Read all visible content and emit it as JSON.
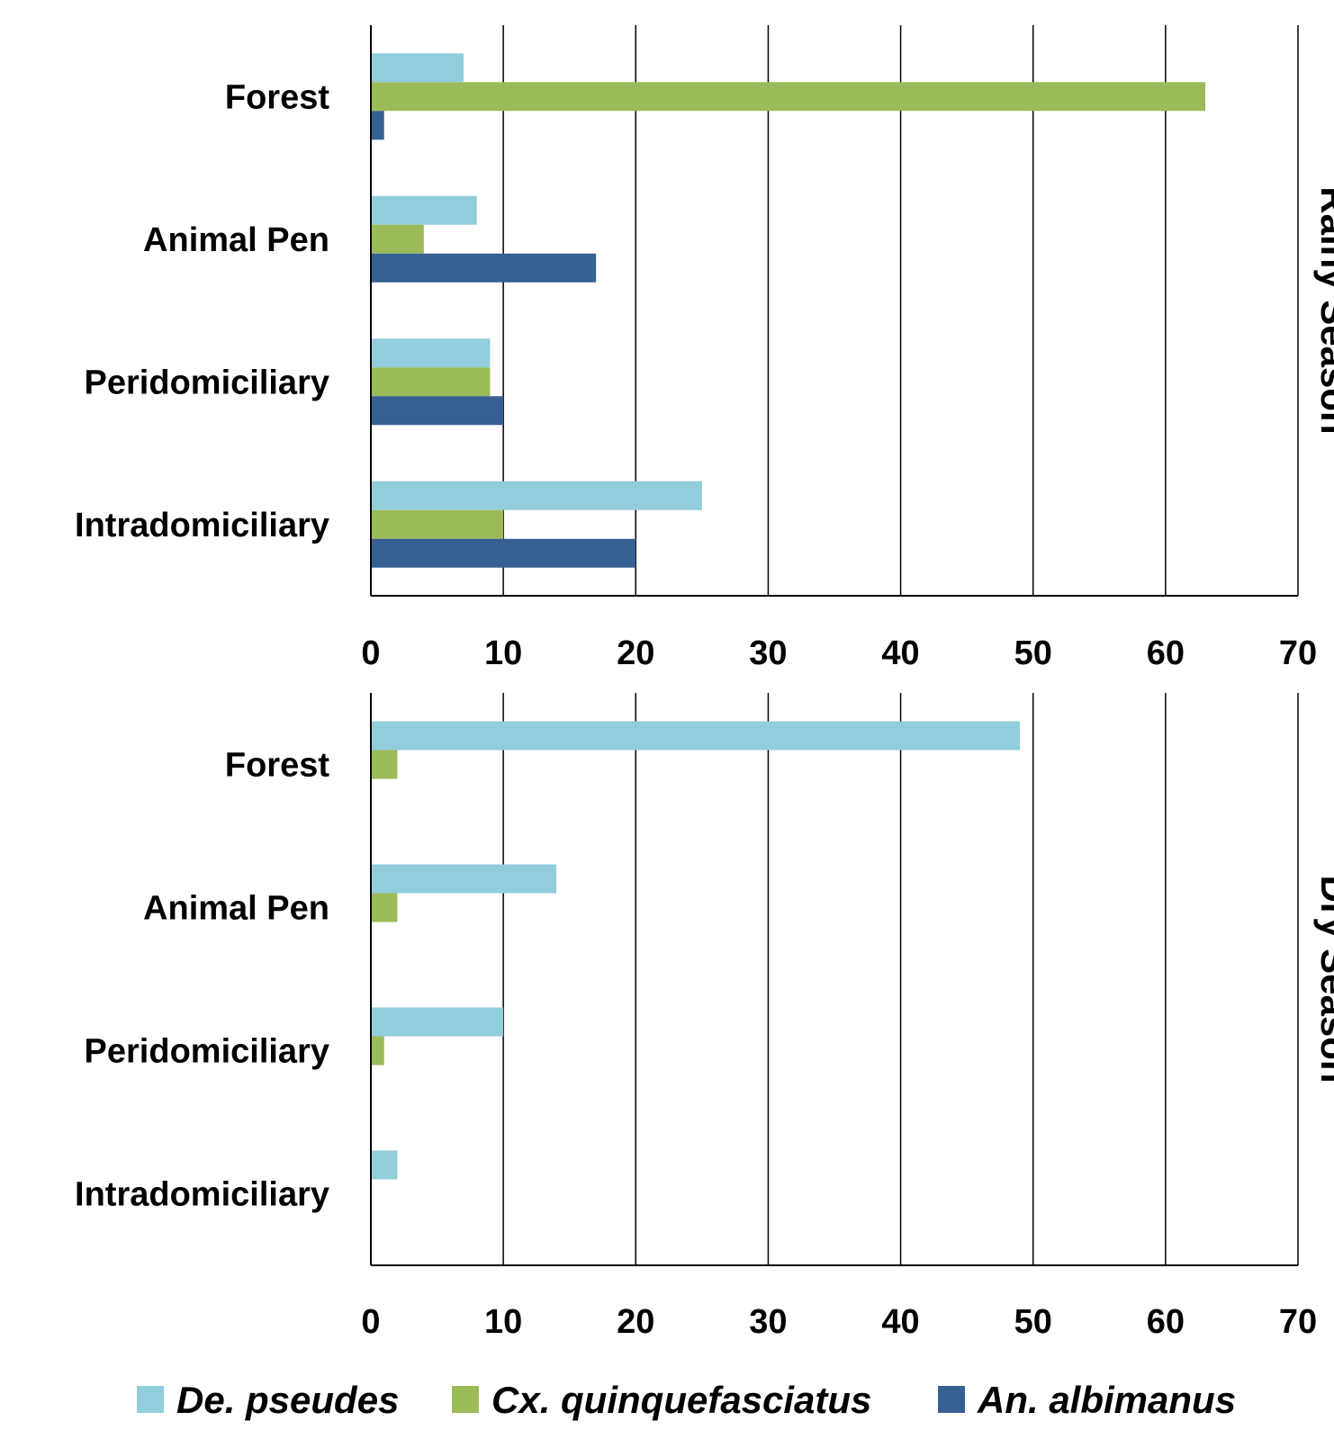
{
  "chart_data": [
    {
      "type": "bar",
      "orientation": "horizontal",
      "panel_label": "Rainy Season",
      "categories": [
        "Forest",
        "Animal Pen",
        "Peridomiciliary",
        "Intradomiciliary"
      ],
      "series": [
        {
          "name": "De. pseudes",
          "values": [
            7,
            8,
            9,
            25
          ]
        },
        {
          "name": "Cx. quinquefasciatus",
          "values": [
            63,
            4,
            9,
            10
          ]
        },
        {
          "name": "An. albimanus",
          "values": [
            1,
            17,
            10,
            20
          ]
        }
      ],
      "xlim": [
        0,
        70
      ],
      "xticks": [
        0,
        10,
        20,
        30,
        40,
        50,
        60,
        70
      ],
      "grid": "vertical",
      "legend": "bottom"
    },
    {
      "type": "bar",
      "orientation": "horizontal",
      "panel_label": "Dry Season",
      "categories": [
        "Forest",
        "Animal Pen",
        "Peridomiciliary",
        "Intradomiciliary"
      ],
      "series": [
        {
          "name": "De. pseudes",
          "values": [
            49,
            14,
            10,
            2
          ]
        },
        {
          "name": "Cx. quinquefasciatus",
          "values": [
            2,
            2,
            1,
            0
          ]
        },
        {
          "name": "An. albimanus",
          "values": [
            0,
            0,
            0,
            0
          ]
        }
      ],
      "xlim": [
        0,
        70
      ],
      "xticks": [
        0,
        10,
        20,
        30,
        40,
        50,
        60,
        70
      ],
      "grid": "vertical",
      "legend": "bottom"
    }
  ],
  "legend": {
    "items": [
      {
        "label": "De. pseudes",
        "color": "#92cddc"
      },
      {
        "label": "Cx. quinquefasciatus",
        "color": "#9bbb59"
      },
      {
        "label": "An. albimanus",
        "color": "#376092"
      }
    ]
  },
  "colors": {
    "De. pseudes": "#92cddc",
    "Cx. quinquefasciatus": "#9bbb59",
    "An. albimanus": "#376092"
  }
}
